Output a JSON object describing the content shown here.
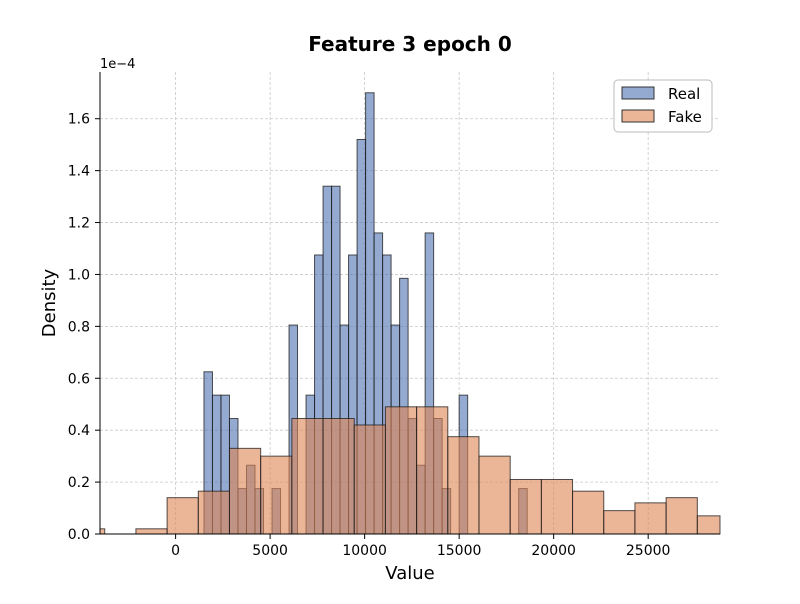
{
  "chart_data": {
    "type": "bar",
    "title": "Feature 3 epoch 0",
    "xlabel": "Value",
    "ylabel": "Density",
    "y_scale_label": "1e−4",
    "xlim": [
      -4000,
      28800
    ],
    "ylim": [
      0,
      1.78
    ],
    "y_units": "1e-4",
    "grid": true,
    "legend": {
      "placement": "top-right",
      "entries": [
        "Real",
        "Fake"
      ]
    },
    "x_ticks": [
      0,
      5000,
      10000,
      15000,
      20000,
      25000
    ],
    "x_tick_labels": [
      "0",
      "5000",
      "10000",
      "15000",
      "20000",
      "25000"
    ],
    "y_ticks": [
      0.0,
      0.2,
      0.4,
      0.6,
      0.8,
      1.0,
      1.2,
      1.4,
      1.6
    ],
    "y_tick_labels": [
      "0.0",
      "0.2",
      "0.4",
      "0.6",
      "0.8",
      "1.0",
      "1.2",
      "1.4",
      "1.6"
    ],
    "series": [
      {
        "name": "Real",
        "color": "#4c72b0",
        "bin_edges": [
          1500,
          1950,
          2400,
          2850,
          3300,
          3750,
          4200,
          4650,
          5100,
          5550,
          6000,
          6450,
          6900,
          7350,
          7800,
          8250,
          8700,
          9150,
          9600,
          10050,
          10500,
          10950,
          11400,
          11850,
          12300,
          12750,
          13200,
          13650,
          14100,
          14550,
          15000,
          15450,
          15900,
          16350,
          16800,
          17250,
          17700,
          18150,
          18600,
          19050,
          19500,
          19950,
          20400,
          20850,
          21300,
          21750,
          22200,
          22650,
          23100,
          23550
        ],
        "values": [
          0.625,
          0.535,
          0.535,
          0.445,
          0.175,
          0.265,
          0.175,
          0.0,
          0.175,
          0.0,
          0.805,
          0.0,
          0.535,
          1.075,
          1.34,
          1.34,
          0.805,
          1.075,
          1.52,
          1.7,
          1.16,
          1.075,
          0.805,
          0.985,
          0.445,
          0.265,
          1.16,
          0.445,
          0.175,
          0.0,
          0.535,
          0.0,
          0.0,
          0.0,
          0.0,
          0.0,
          0.0,
          0.175,
          0.0,
          0.0,
          0.0,
          0.0,
          0.0,
          0.0,
          0.0,
          0.0,
          0.0,
          0.0,
          0.0
        ]
      },
      {
        "name": "Fake",
        "color": "#dd8452",
        "bin_edges": [
          -5400,
          -3750,
          -2100,
          -450,
          1200,
          2850,
          4500,
          6150,
          7800,
          9450,
          11100,
          12750,
          14400,
          16050,
          17700,
          19350,
          21000,
          22650,
          24300,
          25950,
          27600,
          29250
        ],
        "values": [
          0.02,
          0.0,
          0.02,
          0.14,
          0.165,
          0.33,
          0.3,
          0.445,
          0.445,
          0.42,
          0.49,
          0.49,
          0.375,
          0.3,
          0.21,
          0.21,
          0.165,
          0.09,
          0.12,
          0.14,
          0.07
        ]
      }
    ]
  }
}
